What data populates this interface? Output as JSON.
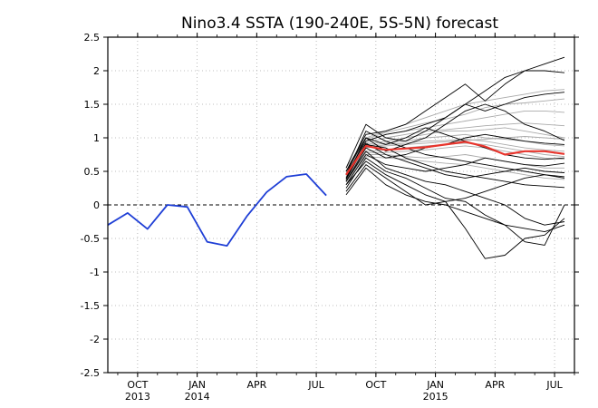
{
  "chart_data": {
    "type": "line",
    "title": "Nino3.4 SSTA (190-240E, 5S-5N) forecast",
    "xlabel": "",
    "ylabel": "",
    "ylim": [
      -2.5,
      2.5
    ],
    "y_ticks": [
      "2.5",
      "2",
      "1.5",
      "1",
      "0.5",
      "0",
      "-0.5",
      "-1",
      "-1.5",
      "-2",
      "-2.5"
    ],
    "x_ticks": [
      {
        "m": 1,
        "label": "OCT",
        "year": "2013"
      },
      {
        "m": 4,
        "label": "JAN",
        "year": "2014"
      },
      {
        "m": 7,
        "label": "APR",
        "year": ""
      },
      {
        "m": 10,
        "label": "JUL",
        "year": ""
      },
      {
        "m": 13,
        "label": "OCT",
        "year": ""
      },
      {
        "m": 16,
        "label": "JAN",
        "year": "2015"
      },
      {
        "m": 19,
        "label": "APR",
        "year": ""
      },
      {
        "m": 22,
        "label": "JUL",
        "year": ""
      }
    ],
    "x_range_months": [
      -0.5,
      23.0
    ],
    "grid": true,
    "zero_line": "dashed",
    "colors": {
      "observed": "#1f3fd6",
      "ensemble_mean": "#e8342c",
      "member_dark": "#000000",
      "member_light": "#aaaaaa"
    },
    "observed": {
      "months": [
        -0.5,
        0.5,
        1.5,
        2.5,
        3.5,
        4.5,
        5.5,
        6.5,
        7.5,
        8.5,
        9.5,
        10.5
      ],
      "values": [
        -0.3,
        -0.12,
        -0.36,
        0.0,
        -0.03,
        -0.55,
        -0.61,
        -0.17,
        0.19,
        0.42,
        0.46,
        0.14
      ]
    },
    "forecast_months": [
      11.5,
      12.5,
      13.5,
      14.5,
      15.5,
      16.5,
      17.5,
      18.5,
      19.5,
      20.5,
      21.5,
      22.5
    ],
    "ensemble_mean": [
      0.45,
      0.88,
      0.82,
      0.84,
      0.86,
      0.9,
      0.94,
      0.87,
      0.75,
      0.8,
      0.8,
      0.76
    ],
    "members_dark": [
      [
        0.5,
        1.05,
        1.1,
        1.2,
        1.4,
        1.6,
        1.8,
        1.55,
        1.8,
        2.0,
        2.1,
        2.2
      ],
      [
        0.45,
        0.95,
        1.05,
        1.1,
        1.2,
        1.3,
        1.5,
        1.7,
        1.9,
        2.0,
        2.0,
        1.97
      ],
      [
        0.55,
        1.2,
        1.0,
        0.95,
        1.1,
        1.3,
        1.5,
        1.4,
        1.5,
        1.6,
        1.65,
        1.68
      ],
      [
        0.4,
        1.0,
        0.8,
        0.9,
        1.0,
        1.2,
        1.4,
        1.5,
        1.4,
        1.2,
        1.1,
        0.96
      ],
      [
        0.35,
        0.85,
        0.7,
        0.75,
        0.85,
        0.9,
        1.0,
        1.05,
        1.0,
        0.95,
        0.92,
        0.9
      ],
      [
        0.3,
        0.75,
        0.6,
        0.55,
        0.5,
        0.55,
        0.6,
        0.7,
        0.65,
        0.6,
        0.58,
        0.62
      ],
      [
        0.35,
        0.8,
        0.55,
        0.45,
        0.35,
        0.3,
        0.2,
        0.1,
        0.0,
        -0.2,
        -0.3,
        -0.25
      ],
      [
        0.25,
        0.7,
        0.5,
        0.4,
        0.25,
        0.1,
        0.05,
        -0.15,
        -0.3,
        -0.55,
        -0.6,
        0.0
      ],
      [
        0.3,
        0.65,
        0.45,
        0.3,
        0.15,
        0.05,
        -0.35,
        -0.8,
        -0.75,
        -0.5,
        -0.45,
        -0.2
      ],
      [
        0.2,
        0.6,
        0.4,
        0.2,
        0.0,
        0.05,
        0.1,
        0.2,
        0.3,
        0.4,
        0.45,
        0.4
      ],
      [
        0.4,
        0.9,
        0.85,
        0.7,
        0.6,
        0.5,
        0.45,
        0.4,
        0.35,
        0.3,
        0.28,
        0.26
      ],
      [
        0.45,
        1.1,
        0.95,
        0.85,
        0.75,
        0.7,
        0.65,
        0.6,
        0.55,
        0.5,
        0.45,
        0.42
      ],
      [
        0.38,
        0.92,
        0.75,
        0.65,
        0.55,
        0.45,
        0.4,
        0.45,
        0.5,
        0.55,
        0.5,
        0.48
      ],
      [
        0.5,
        1.0,
        0.9,
        1.0,
        1.15,
        1.05,
        0.95,
        0.85,
        0.75,
        0.7,
        0.68,
        0.7
      ],
      [
        0.15,
        0.55,
        0.3,
        0.15,
        0.05,
        0.0,
        -0.1,
        -0.2,
        -0.3,
        -0.35,
        -0.4,
        -0.3
      ]
    ],
    "members_light": [
      [
        0.55,
        1.0,
        1.1,
        1.2,
        1.3,
        1.4,
        1.5,
        1.55,
        1.6,
        1.65,
        1.7,
        1.72
      ],
      [
        0.5,
        0.95,
        1.05,
        1.1,
        1.15,
        1.2,
        1.25,
        1.3,
        1.35,
        1.4,
        1.4,
        1.38
      ],
      [
        0.48,
        0.92,
        1.0,
        1.05,
        1.1,
        1.12,
        1.15,
        1.18,
        1.2,
        1.22,
        1.2,
        1.18
      ],
      [
        0.45,
        0.9,
        0.95,
        1.0,
        1.05,
        1.1,
        1.1,
        1.12,
        1.15,
        1.1,
        1.05,
        1.0
      ],
      [
        0.42,
        0.88,
        0.92,
        0.95,
        1.0,
        1.02,
        1.05,
        1.0,
        0.98,
        0.95,
        0.9,
        0.88
      ],
      [
        0.4,
        0.85,
        0.9,
        0.92,
        0.95,
        0.96,
        0.98,
        0.95,
        0.9,
        0.85,
        0.82,
        0.8
      ],
      [
        0.38,
        0.8,
        0.82,
        0.85,
        0.88,
        0.9,
        0.92,
        0.9,
        0.85,
        0.8,
        0.75,
        0.72
      ],
      [
        0.36,
        0.78,
        0.78,
        0.8,
        0.82,
        0.85,
        0.88,
        0.85,
        0.8,
        0.75,
        0.7,
        0.68
      ],
      [
        0.35,
        0.75,
        0.75,
        0.72,
        0.7,
        0.72,
        0.75,
        0.7,
        0.65,
        0.6,
        0.55,
        0.55
      ],
      [
        0.34,
        0.72,
        0.7,
        0.68,
        0.65,
        0.62,
        0.6,
        0.55,
        0.5,
        0.45,
        0.4,
        0.38
      ],
      [
        0.46,
        0.98,
        1.08,
        1.15,
        1.22,
        1.28,
        1.35,
        1.45,
        1.5,
        1.52,
        1.55,
        1.58
      ],
      [
        0.44,
        0.86,
        0.88,
        0.9,
        0.92,
        0.94,
        0.96,
        0.98,
        1.0,
        1.02,
        1.0,
        0.98
      ]
    ]
  }
}
